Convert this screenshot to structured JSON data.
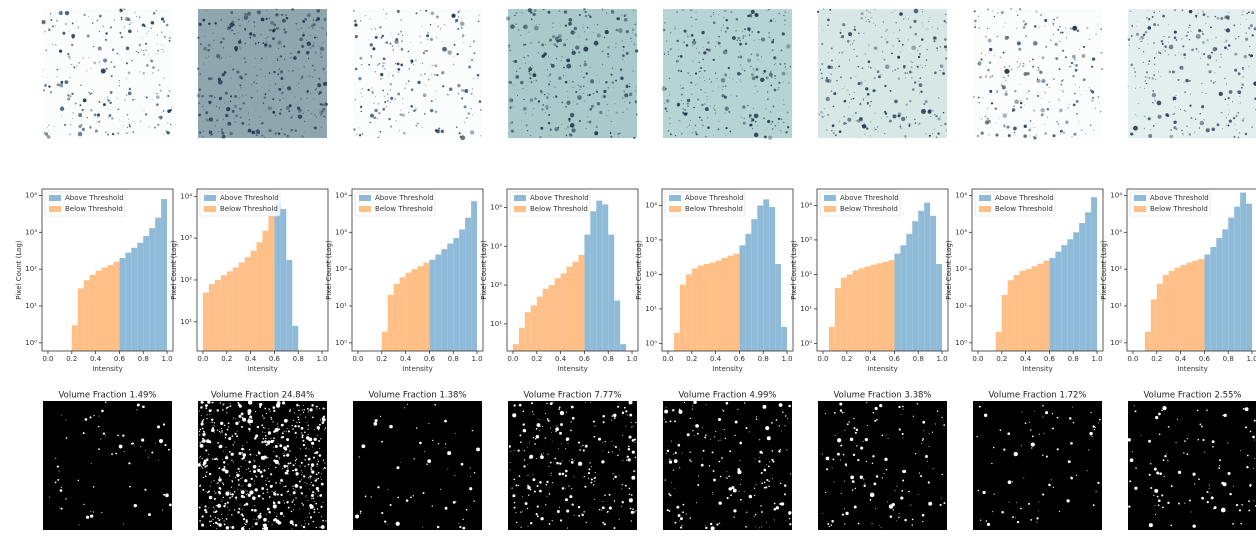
{
  "chart_data": [
    {
      "type": "histogram",
      "xlabel": "Intensity",
      "ylabel": "Pixel Count (Log)",
      "log_y": true,
      "legend": "upper left",
      "bins": [
        0,
        0.05,
        0.1,
        0.15,
        0.2,
        0.25,
        0.3,
        0.35,
        0.4,
        0.45,
        0.5,
        0.55,
        0.6,
        0.65,
        0.7,
        0.75,
        0.8,
        0.85,
        0.9,
        0.95,
        1
      ],
      "xlim": [
        -0.05,
        1.05
      ],
      "xticks": [
        {
          "value": 0,
          "label": "0.0"
        },
        0.2,
        0.4,
        0.6,
        0.8,
        {
          "value": 1,
          "label": "1.0"
        }
      ],
      "ylim": [
        0.6,
        15000
      ],
      "yticks": [
        {
          "value": 1,
          "label": "10⁰"
        },
        {
          "value": 10,
          "label": "10¹"
        },
        {
          "value": 100,
          "label": "10²"
        },
        {
          "value": 1000,
          "label": "10³"
        },
        {
          "value": 10000,
          "label": "10⁴"
        }
      ],
      "series": [
        {
          "name": "Above Threshold",
          "color": "#8fbbd9",
          "values": [
            null,
            null,
            null,
            null,
            null,
            null,
            null,
            null,
            null,
            null,
            null,
            null,
            200,
            280,
            380,
            520,
            800,
            1300,
            2500,
            8000
          ]
        },
        {
          "name": "Below Threshold",
          "color": "#ffbf87",
          "values": [
            null,
            null,
            null,
            null,
            3,
            30,
            50,
            70,
            90,
            110,
            130,
            160,
            null,
            null,
            null,
            null,
            null,
            null,
            null,
            null
          ]
        }
      ]
    },
    {
      "type": "histogram",
      "xlabel": "Intensity",
      "ylabel": "Pixel Count (Log)",
      "log_y": true,
      "legend": "upper left",
      "bins": [
        0,
        0.05,
        0.1,
        0.15,
        0.2,
        0.25,
        0.3,
        0.35,
        0.4,
        0.45,
        0.5,
        0.55,
        0.6,
        0.65,
        0.7,
        0.75,
        0.8,
        0.85,
        0.9,
        0.95,
        1
      ],
      "xlim": [
        -0.05,
        1.05
      ],
      "xticks": [
        {
          "value": 0,
          "label": "0.0"
        },
        0.2,
        0.4,
        0.6,
        0.8,
        {
          "value": 1,
          "label": "1.0"
        }
      ],
      "ylim": [
        2,
        15000
      ],
      "yticks": [
        {
          "value": 10,
          "label": "10¹"
        },
        {
          "value": 100,
          "label": "10²"
        },
        {
          "value": 1000,
          "label": "10³"
        },
        {
          "value": 10000,
          "label": "10⁴"
        }
      ],
      "series": [
        {
          "name": "Above Threshold",
          "color": "#8fbbd9",
          "values": [
            null,
            null,
            null,
            null,
            null,
            null,
            null,
            null,
            null,
            null,
            null,
            null,
            7000,
            5000,
            300,
            8,
            null,
            null,
            null,
            null
          ]
        },
        {
          "name": "Below Threshold",
          "color": "#ffbf87",
          "values": [
            50,
            80,
            100,
            130,
            160,
            200,
            260,
            350,
            500,
            800,
            1500,
            3500,
            null,
            null,
            null,
            null,
            null,
            null,
            null,
            null
          ]
        }
      ]
    },
    {
      "type": "histogram",
      "xlabel": "Intensity",
      "ylabel": "Pixel Count (Log)",
      "log_y": true,
      "legend": "upper left",
      "bins": [
        0,
        0.05,
        0.1,
        0.15,
        0.2,
        0.25,
        0.3,
        0.35,
        0.4,
        0.45,
        0.5,
        0.55,
        0.6,
        0.65,
        0.7,
        0.75,
        0.8,
        0.85,
        0.9,
        0.95,
        1
      ],
      "xlim": [
        -0.05,
        1.05
      ],
      "xticks": [
        {
          "value": 0,
          "label": "0.0"
        },
        0.2,
        0.4,
        0.6,
        0.8,
        {
          "value": 1,
          "label": "1.0"
        }
      ],
      "ylim": [
        0.6,
        15000
      ],
      "yticks": [
        {
          "value": 1,
          "label": "10⁰"
        },
        {
          "value": 10,
          "label": "10¹"
        },
        {
          "value": 100,
          "label": "10²"
        },
        {
          "value": 1000,
          "label": "10³"
        },
        {
          "value": 10000,
          "label": "10⁴"
        }
      ],
      "series": [
        {
          "name": "Above Threshold",
          "color": "#8fbbd9",
          "values": [
            null,
            null,
            null,
            null,
            null,
            null,
            null,
            null,
            null,
            null,
            null,
            null,
            180,
            250,
            350,
            500,
            700,
            1200,
            2500,
            7000
          ]
        },
        {
          "name": "Below Threshold",
          "color": "#ffbf87",
          "values": [
            null,
            null,
            null,
            null,
            2,
            20,
            40,
            60,
            80,
            100,
            120,
            150,
            null,
            null,
            null,
            null,
            null,
            null,
            null,
            null
          ]
        }
      ]
    },
    {
      "type": "histogram",
      "xlabel": "Intensity",
      "ylabel": "Pixel Count (Log)",
      "log_y": true,
      "legend": "upper left",
      "bins": [
        0,
        0.05,
        0.1,
        0.15,
        0.2,
        0.25,
        0.3,
        0.35,
        0.4,
        0.45,
        0.5,
        0.55,
        0.6,
        0.65,
        0.7,
        0.75,
        0.8,
        0.85,
        0.9,
        0.95,
        1
      ],
      "xlim": [
        -0.05,
        1.05
      ],
      "xticks": [
        {
          "value": 0,
          "label": "0.0"
        },
        0.2,
        0.4,
        0.6,
        0.8,
        {
          "value": 1,
          "label": "1.0"
        }
      ],
      "ylim": [
        2,
        30000
      ],
      "yticks": [
        {
          "value": 10,
          "label": "10¹"
        },
        {
          "value": 100,
          "label": "10²"
        },
        {
          "value": 1000,
          "label": "10³"
        },
        {
          "value": 10000,
          "label": "10⁴"
        }
      ],
      "series": [
        {
          "name": "Above Threshold",
          "color": "#8fbbd9",
          "values": [
            null,
            null,
            null,
            null,
            null,
            null,
            null,
            null,
            null,
            null,
            null,
            null,
            2000,
            8000,
            15000,
            12000,
            2000,
            40,
            3,
            null
          ]
        },
        {
          "name": "Below Threshold",
          "color": "#ffbf87",
          "values": [
            3,
            8,
            20,
            30,
            50,
            80,
            100,
            150,
            200,
            300,
            400,
            600,
            null,
            null,
            null,
            null,
            null,
            null,
            null,
            null
          ]
        }
      ]
    },
    {
      "type": "histogram",
      "xlabel": "Intensity",
      "ylabel": "Pixel Count (Log)",
      "log_y": true,
      "legend": "upper left",
      "bins": [
        0,
        0.05,
        0.1,
        0.15,
        0.2,
        0.25,
        0.3,
        0.35,
        0.4,
        0.45,
        0.5,
        0.55,
        0.6,
        0.65,
        0.7,
        0.75,
        0.8,
        0.85,
        0.9,
        0.95,
        1
      ],
      "xlim": [
        -0.05,
        1.05
      ],
      "xticks": [
        {
          "value": 0,
          "label": "0.0"
        },
        0.2,
        0.4,
        0.6,
        0.8,
        {
          "value": 1,
          "label": "1.0"
        }
      ],
      "ylim": [
        0.6,
        30000
      ],
      "yticks": [
        {
          "value": 1,
          "label": "10⁰"
        },
        {
          "value": 10,
          "label": "10¹"
        },
        {
          "value": 100,
          "label": "10²"
        },
        {
          "value": 1000,
          "label": "10³"
        },
        {
          "value": 10000,
          "label": "10⁴"
        }
      ],
      "series": [
        {
          "name": "Above Threshold",
          "color": "#8fbbd9",
          "values": [
            null,
            null,
            null,
            null,
            null,
            null,
            null,
            null,
            null,
            null,
            null,
            null,
            700,
            1500,
            4000,
            10000,
            15000,
            9000,
            200,
            3
          ]
        },
        {
          "name": "Below Threshold",
          "color": "#ffbf87",
          "values": [
            null,
            2,
            50,
            100,
            150,
            180,
            200,
            220,
            250,
            300,
            350,
            400,
            null,
            null,
            null,
            null,
            null,
            null,
            null,
            null
          ]
        }
      ]
    },
    {
      "type": "histogram",
      "xlabel": "Intensity",
      "ylabel": "Pixel Count (Log)",
      "log_y": true,
      "legend": "upper left",
      "bins": [
        0,
        0.05,
        0.1,
        0.15,
        0.2,
        0.25,
        0.3,
        0.35,
        0.4,
        0.45,
        0.5,
        0.55,
        0.6,
        0.65,
        0.7,
        0.75,
        0.8,
        0.85,
        0.9,
        0.95,
        1
      ],
      "xlim": [
        -0.05,
        1.05
      ],
      "xticks": [
        {
          "value": 0,
          "label": "0.0"
        },
        0.2,
        0.4,
        0.6,
        0.8,
        {
          "value": 1,
          "label": "1.0"
        }
      ],
      "ylim": [
        0.6,
        30000
      ],
      "yticks": [
        {
          "value": 1,
          "label": "10⁰"
        },
        {
          "value": 10,
          "label": "10¹"
        },
        {
          "value": 100,
          "label": "10²"
        },
        {
          "value": 1000,
          "label": "10³"
        },
        {
          "value": 10000,
          "label": "10⁴"
        }
      ],
      "series": [
        {
          "name": "Above Threshold",
          "color": "#8fbbd9",
          "values": [
            null,
            null,
            null,
            null,
            null,
            null,
            null,
            null,
            null,
            null,
            null,
            null,
            400,
            700,
            1500,
            3500,
            7000,
            12000,
            5000,
            200
          ]
        },
        {
          "name": "Below Threshold",
          "color": "#ffbf87",
          "values": [
            null,
            3,
            40,
            80,
            100,
            130,
            150,
            170,
            190,
            210,
            230,
            260,
            null,
            null,
            null,
            null,
            null,
            null,
            null,
            null
          ]
        }
      ]
    },
    {
      "type": "histogram",
      "xlabel": "Intensity",
      "ylabel": "Pixel Count (Log)",
      "log_y": true,
      "legend": "upper left",
      "bins": [
        0,
        0.05,
        0.1,
        0.15,
        0.2,
        0.25,
        0.3,
        0.35,
        0.4,
        0.45,
        0.5,
        0.55,
        0.6,
        0.65,
        0.7,
        0.75,
        0.8,
        0.85,
        0.9,
        0.95,
        1
      ],
      "xlim": [
        -0.05,
        1.05
      ],
      "xticks": [
        {
          "value": 0,
          "label": "0.0"
        },
        0.2,
        0.4,
        0.6,
        0.8,
        {
          "value": 1,
          "label": "1.0"
        }
      ],
      "ylim": [
        0.6,
        15000
      ],
      "yticks": [
        {
          "value": 1,
          "label": "10⁰"
        },
        {
          "value": 10,
          "label": "10¹"
        },
        {
          "value": 100,
          "label": "10²"
        },
        {
          "value": 1000,
          "label": "10³"
        },
        {
          "value": 10000,
          "label": "10⁴"
        }
      ],
      "series": [
        {
          "name": "Above Threshold",
          "color": "#8fbbd9",
          "values": [
            null,
            null,
            null,
            null,
            null,
            null,
            null,
            null,
            null,
            null,
            null,
            null,
            200,
            300,
            450,
            650,
            1000,
            1800,
            3500,
            9000
          ]
        },
        {
          "name": "Below Threshold",
          "color": "#ffbf87",
          "values": [
            null,
            null,
            null,
            2,
            20,
            50,
            70,
            90,
            100,
            120,
            140,
            170,
            null,
            null,
            null,
            null,
            null,
            null,
            null,
            null
          ]
        }
      ]
    },
    {
      "type": "histogram",
      "xlabel": "Intensity",
      "ylabel": "Pixel Count (Log)",
      "log_y": true,
      "legend": "upper left",
      "bins": [
        0,
        0.05,
        0.1,
        0.15,
        0.2,
        0.25,
        0.3,
        0.35,
        0.4,
        0.45,
        0.5,
        0.55,
        0.6,
        0.65,
        0.7,
        0.75,
        0.8,
        0.85,
        0.9,
        0.95,
        1
      ],
      "xlim": [
        -0.05,
        1.05
      ],
      "xticks": [
        {
          "value": 0,
          "label": "0.0"
        },
        0.2,
        0.4,
        0.6,
        0.8,
        {
          "value": 1,
          "label": "1.0"
        }
      ],
      "ylim": [
        0.6,
        15000
      ],
      "yticks": [
        {
          "value": 1,
          "label": "10⁰"
        },
        {
          "value": 10,
          "label": "10¹"
        },
        {
          "value": 100,
          "label": "10²"
        },
        {
          "value": 1000,
          "label": "10³"
        },
        {
          "value": 10000,
          "label": "10⁴"
        }
      ],
      "series": [
        {
          "name": "Above Threshold",
          "color": "#8fbbd9",
          "values": [
            null,
            null,
            null,
            null,
            null,
            null,
            null,
            null,
            null,
            null,
            null,
            null,
            250,
            400,
            700,
            1200,
            2500,
            5000,
            12000,
            6000
          ]
        },
        {
          "name": "Below Threshold",
          "color": "#ffbf87",
          "values": [
            null,
            null,
            2,
            15,
            40,
            70,
            90,
            110,
            130,
            150,
            170,
            190,
            null,
            null,
            null,
            null,
            null,
            null,
            null,
            null
          ]
        }
      ]
    }
  ],
  "binary_images": [
    {
      "title": "Volume Fraction 1.49%"
    },
    {
      "title": "Volume Fraction 24.84%"
    },
    {
      "title": "Volume Fraction 1.38%"
    },
    {
      "title": "Volume Fraction 7.77%"
    },
    {
      "title": "Volume Fraction 4.99%"
    },
    {
      "title": "Volume Fraction 3.38%"
    },
    {
      "title": "Volume Fraction 1.72%"
    },
    {
      "title": "Volume Fraction 2.55%"
    }
  ]
}
